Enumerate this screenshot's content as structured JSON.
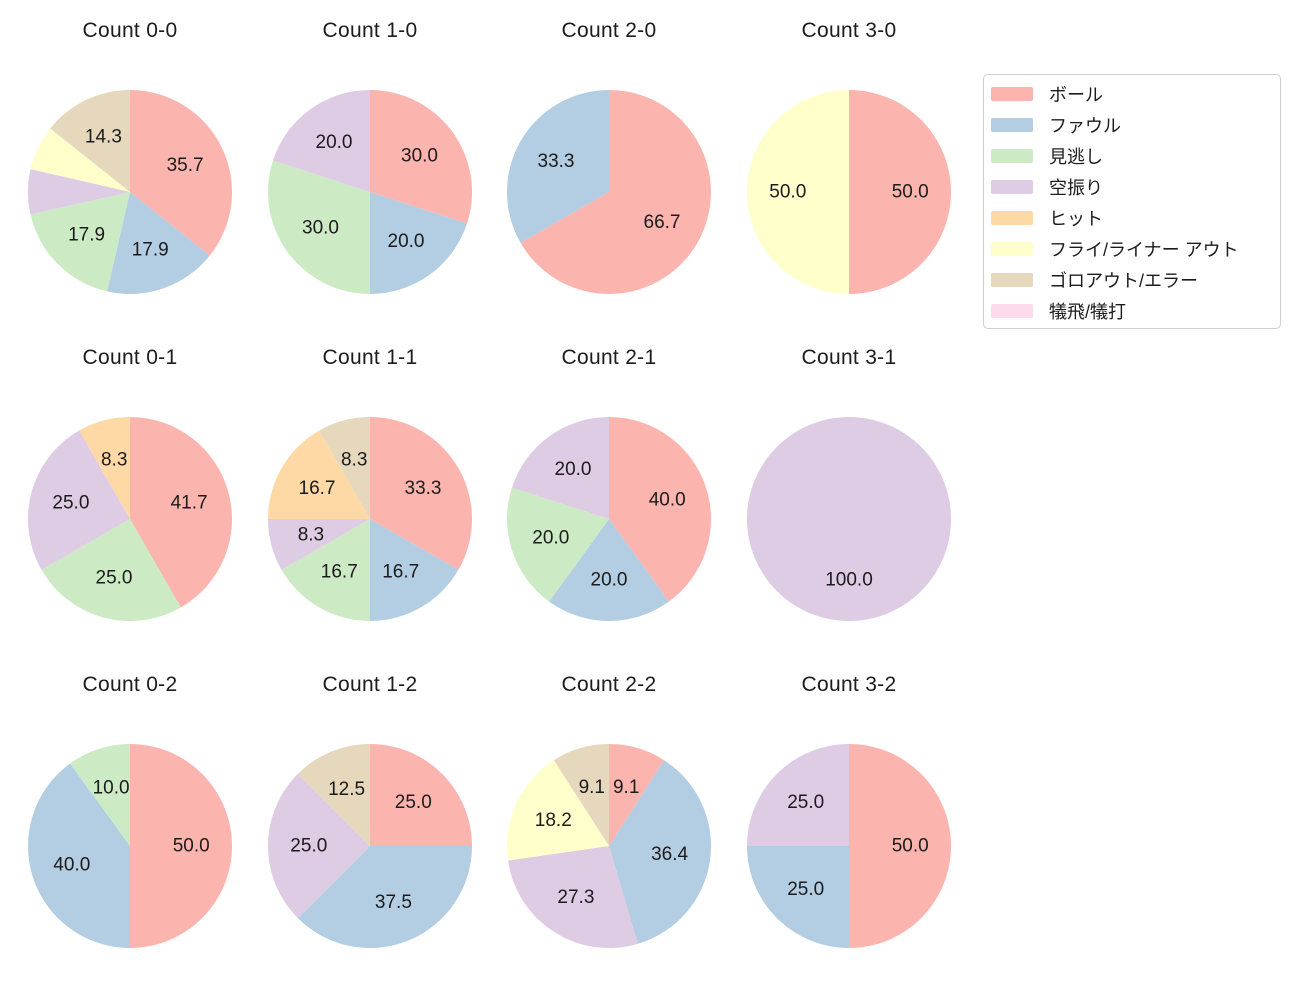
{
  "figure": {
    "background": "#ffffff",
    "text_color": "#1c1c1c"
  },
  "chart_data": {
    "type": "pie",
    "layout": {
      "rows": 3,
      "cols": 4,
      "grid": "off"
    },
    "pie_style": {
      "start_angle_deg": 90,
      "direction": "clockwise",
      "value_format": "%.1f",
      "label_distance": 0.6
    },
    "legend": {
      "position": "upper-right",
      "items": [
        {
          "key": "ball",
          "label": "ボール",
          "color": "#fbb4ae"
        },
        {
          "key": "foul",
          "label": "ファウル",
          "color": "#b3cde3"
        },
        {
          "key": "called-strike",
          "label": "見逃し",
          "color": "#ccebc5"
        },
        {
          "key": "swinging-strike",
          "label": "空振り",
          "color": "#decbe4"
        },
        {
          "key": "hit",
          "label": "ヒット",
          "color": "#fed9a6"
        },
        {
          "key": "fly-liner-out",
          "label": "フライ/ライナー アウト",
          "color": "#ffffcc"
        },
        {
          "key": "groundout-error",
          "label": "ゴロアウト/エラー",
          "color": "#e5d8bd"
        },
        {
          "key": "sacrifice",
          "label": "犠飛/犠打",
          "color": "#fddaec"
        }
      ]
    },
    "charts": [
      {
        "title": "Count 0-0",
        "row": 0,
        "col": 0,
        "slices": [
          {
            "category": "ball",
            "value": 35.7,
            "label": "35.7"
          },
          {
            "category": "foul",
            "value": 17.9,
            "label": "17.9"
          },
          {
            "category": "called-strike",
            "value": 17.9,
            "label": "17.9"
          },
          {
            "category": "swinging-strike",
            "value": 7.1,
            "label": ""
          },
          {
            "category": "fly-liner-out",
            "value": 7.1,
            "label": ""
          },
          {
            "category": "groundout-error",
            "value": 14.3,
            "label": "14.3"
          }
        ]
      },
      {
        "title": "Count 1-0",
        "row": 0,
        "col": 1,
        "slices": [
          {
            "category": "ball",
            "value": 30.0,
            "label": "30.0"
          },
          {
            "category": "foul",
            "value": 20.0,
            "label": "20.0"
          },
          {
            "category": "called-strike",
            "value": 30.0,
            "label": "30.0"
          },
          {
            "category": "swinging-strike",
            "value": 20.0,
            "label": "20.0"
          }
        ]
      },
      {
        "title": "Count 2-0",
        "row": 0,
        "col": 2,
        "slices": [
          {
            "category": "ball",
            "value": 66.7,
            "label": "66.7"
          },
          {
            "category": "foul",
            "value": 33.3,
            "label": "33.3"
          }
        ]
      },
      {
        "title": "Count 3-0",
        "row": 0,
        "col": 3,
        "slices": [
          {
            "category": "ball",
            "value": 50.0,
            "label": "50.0"
          },
          {
            "category": "fly-liner-out",
            "value": 50.0,
            "label": "50.0"
          }
        ]
      },
      {
        "title": "Count 0-1",
        "row": 1,
        "col": 0,
        "slices": [
          {
            "category": "ball",
            "value": 41.7,
            "label": "41.7"
          },
          {
            "category": "called-strike",
            "value": 25.0,
            "label": "25.0"
          },
          {
            "category": "swinging-strike",
            "value": 25.0,
            "label": "25.0"
          },
          {
            "category": "hit",
            "value": 8.3,
            "label": "8.3"
          }
        ]
      },
      {
        "title": "Count 1-1",
        "row": 1,
        "col": 1,
        "slices": [
          {
            "category": "ball",
            "value": 33.3,
            "label": "33.3"
          },
          {
            "category": "foul",
            "value": 16.7,
            "label": "16.7"
          },
          {
            "category": "called-strike",
            "value": 16.7,
            "label": "16.7"
          },
          {
            "category": "swinging-strike",
            "value": 8.3,
            "label": "8.3"
          },
          {
            "category": "hit",
            "value": 16.7,
            "label": "16.7"
          },
          {
            "category": "groundout-error",
            "value": 8.3,
            "label": "8.3"
          }
        ]
      },
      {
        "title": "Count 2-1",
        "row": 1,
        "col": 2,
        "slices": [
          {
            "category": "ball",
            "value": 40.0,
            "label": "40.0"
          },
          {
            "category": "foul",
            "value": 20.0,
            "label": "20.0"
          },
          {
            "category": "called-strike",
            "value": 20.0,
            "label": "20.0"
          },
          {
            "category": "swinging-strike",
            "value": 20.0,
            "label": "20.0"
          }
        ]
      },
      {
        "title": "Count 3-1",
        "row": 1,
        "col": 3,
        "slices": [
          {
            "category": "swinging-strike",
            "value": 100.0,
            "label": "100.0"
          }
        ]
      },
      {
        "title": "Count 0-2",
        "row": 2,
        "col": 0,
        "slices": [
          {
            "category": "ball",
            "value": 50.0,
            "label": "50.0"
          },
          {
            "category": "foul",
            "value": 40.0,
            "label": "40.0"
          },
          {
            "category": "called-strike",
            "value": 10.0,
            "label": "10.0"
          }
        ]
      },
      {
        "title": "Count 1-2",
        "row": 2,
        "col": 1,
        "slices": [
          {
            "category": "ball",
            "value": 25.0,
            "label": "25.0"
          },
          {
            "category": "foul",
            "value": 37.5,
            "label": "37.5"
          },
          {
            "category": "swinging-strike",
            "value": 25.0,
            "label": "25.0"
          },
          {
            "category": "groundout-error",
            "value": 12.5,
            "label": "12.5"
          }
        ]
      },
      {
        "title": "Count 2-2",
        "row": 2,
        "col": 2,
        "slices": [
          {
            "category": "ball",
            "value": 9.1,
            "label": "9.1"
          },
          {
            "category": "foul",
            "value": 36.4,
            "label": "36.4"
          },
          {
            "category": "swinging-strike",
            "value": 27.3,
            "label": "27.3"
          },
          {
            "category": "fly-liner-out",
            "value": 18.2,
            "label": "18.2"
          },
          {
            "category": "groundout-error",
            "value": 9.1,
            "label": "9.1"
          }
        ]
      },
      {
        "title": "Count 3-2",
        "row": 2,
        "col": 3,
        "slices": [
          {
            "category": "ball",
            "value": 50.0,
            "label": "50.0"
          },
          {
            "category": "foul",
            "value": 25.0,
            "label": "25.0"
          },
          {
            "category": "swinging-strike",
            "value": 25.0,
            "label": "25.0"
          }
        ]
      }
    ]
  }
}
